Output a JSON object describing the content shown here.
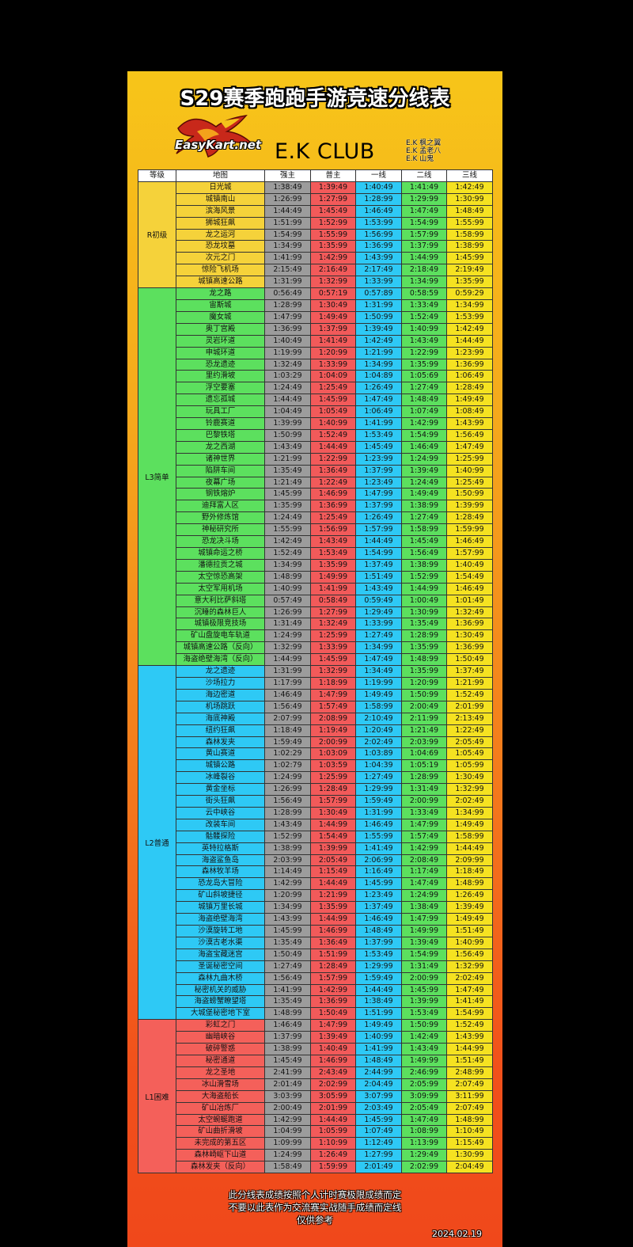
{
  "title": "S29赛季跑跑手游竞速分线表",
  "logo_text": "EasyKart.net",
  "club_name": "E.K CLUB",
  "members": [
    "E.K 枫之翼",
    "E.K 孟老八",
    "E.K 山鬼"
  ],
  "headers": [
    "等级",
    "地图",
    "强主",
    "普主",
    "一线",
    "二线",
    "三线"
  ],
  "colors": {
    "R": "#f5d23a",
    "L3": "#5ce05e",
    "L2": "#2ec9f5",
    "L1": "#f4605a",
    "col_strong": "#9c9c9c",
    "col_normal": "#f25a5a",
    "col_l1": "#2ec9f5",
    "col_l2": "#5ce05e",
    "col_l3": "#f5e221"
  },
  "groups": [
    {
      "level": "R初级",
      "key": "R",
      "rows": [
        [
          "日光城",
          "1:38:49",
          "1:39:49",
          "1:40:49",
          "1:41:49",
          "1:42:49"
        ],
        [
          "城镇南山",
          "1:26:99",
          "1:27:99",
          "1:28:99",
          "1:29:99",
          "1:30:99"
        ],
        [
          "滨海风景",
          "1:44:49",
          "1:45:49",
          "1:46:49",
          "1:47:49",
          "1:48:49"
        ],
        [
          "狮城狂飙",
          "1:51:99",
          "1:52:99",
          "1:53:99",
          "1:54:99",
          "1:55:99"
        ],
        [
          "龙之运河",
          "1:54:99",
          "1:55:99",
          "1:56:99",
          "1:57:99",
          "1:58:99"
        ],
        [
          "恐龙坟墓",
          "1:34:99",
          "1:35:99",
          "1:36:99",
          "1:37:99",
          "1:38:99"
        ],
        [
          "次元之门",
          "1:41:99",
          "1:42:99",
          "1:43:99",
          "1:44:99",
          "1:45:99"
        ],
        [
          "惊险飞机场",
          "2:15:49",
          "2:16:49",
          "2:17:49",
          "2:18:49",
          "2:19:49"
        ],
        [
          "城镇高速公路",
          "1:31:99",
          "1:32:99",
          "1:33:99",
          "1:34:99",
          "1:35:99"
        ]
      ]
    },
    {
      "level": "L3简单",
      "key": "L3",
      "rows": [
        [
          "龙之路",
          "0:56:49",
          "0:57:19",
          "0:57:89",
          "0:58:59",
          "0:59:29"
        ],
        [
          "宙斯城",
          "1:28:99",
          "1:30:49",
          "1:31:99",
          "1:33:49",
          "1:34:99"
        ],
        [
          "魔女城",
          "1:47:99",
          "1:49:49",
          "1:50:99",
          "1:52:49",
          "1:53:99"
        ],
        [
          "奥丁宫殿",
          "1:36:99",
          "1:37:99",
          "1:39:49",
          "1:40:99",
          "1:42:49"
        ],
        [
          "灵岩环道",
          "1:40:49",
          "1:41:49",
          "1:42:49",
          "1:43:49",
          "1:44:49"
        ],
        [
          "申城环道",
          "1:19:99",
          "1:20:99",
          "1:21:99",
          "1:22:99",
          "1:23:99"
        ],
        [
          "恐龙遗迹",
          "1:32:49",
          "1:33:99",
          "1:34:99",
          "1:35:99",
          "1:36:99"
        ],
        [
          "里约滑坡",
          "1:03:29",
          "1:04:09",
          "1:04:89",
          "1:05:69",
          "1:06:49"
        ],
        [
          "浮空要塞",
          "1:24:49",
          "1:25:49",
          "1:26:49",
          "1:27:49",
          "1:28:49"
        ],
        [
          "遗忘孤城",
          "1:44:49",
          "1:45:99",
          "1:47:49",
          "1:48:49",
          "1:49:49"
        ],
        [
          "玩具工厂",
          "1:04:49",
          "1:05:49",
          "1:06:49",
          "1:07:49",
          "1:08:49"
        ],
        [
          "铃鹿赛道",
          "1:39:99",
          "1:40:99",
          "1:41:99",
          "1:42:99",
          "1:43:99"
        ],
        [
          "巴黎铁塔",
          "1:50:99",
          "1:52:49",
          "1:53:49",
          "1:54:99",
          "1:56:49"
        ],
        [
          "龙之西湖",
          "1:43:49",
          "1:44:49",
          "1:45:49",
          "1:46:49",
          "1:47:49"
        ],
        [
          "诸神世界",
          "1:21:99",
          "1:22:99",
          "1:23:99",
          "1:24:99",
          "1:25:99"
        ],
        [
          "陷阱车间",
          "1:35:49",
          "1:36:49",
          "1:37:99",
          "1:39:49",
          "1:40:99"
        ],
        [
          "夜幕广场",
          "1:21:49",
          "1:22:49",
          "1:23:49",
          "1:24:49",
          "1:25:49"
        ],
        [
          "钢铁熔炉",
          "1:45:99",
          "1:46:99",
          "1:47:99",
          "1:49:49",
          "1:50:99"
        ],
        [
          "迪拜富人区",
          "1:35:99",
          "1:36:99",
          "1:37:99",
          "1:38:99",
          "1:39:99"
        ],
        [
          "野外修炼馆",
          "1:24:49",
          "1:25:49",
          "1:26:49",
          "1:27:49",
          "1:28:49"
        ],
        [
          "神秘研究所",
          "1:55:99",
          "1:56:99",
          "1:57:99",
          "1:58:99",
          "1:59:99"
        ],
        [
          "恐龙决斗场",
          "1:42:49",
          "1:43:49",
          "1:44:49",
          "1:45:49",
          "1:46:49"
        ],
        [
          "城镇命运之桥",
          "1:52:49",
          "1:53:49",
          "1:54:99",
          "1:56:49",
          "1:57:99"
        ],
        [
          "潘德拉贡之城",
          "1:34:99",
          "1:35:99",
          "1:37:49",
          "1:38:99",
          "1:40:49"
        ],
        [
          "太空惊恐高架",
          "1:48:99",
          "1:49:99",
          "1:51:49",
          "1:52:99",
          "1:54:49"
        ],
        [
          "太空军用机场",
          "1:40:99",
          "1:41:99",
          "1:43:49",
          "1:44:99",
          "1:46:49"
        ],
        [
          "意大利比萨斜塔",
          "0:57:49",
          "0:58:49",
          "0:59:49",
          "1:00:49",
          "1:01:49"
        ],
        [
          "沉睡的森林巨人",
          "1:26:99",
          "1:27:99",
          "1:29:49",
          "1:30:99",
          "1:32:49"
        ],
        [
          "城镇极限竞技场",
          "1:31:49",
          "1:32:49",
          "1:33:99",
          "1:35:49",
          "1:36:99"
        ],
        [
          "矿山盘旋电车轨道",
          "1:24:99",
          "1:25:99",
          "1:27:49",
          "1:28:99",
          "1:30:49"
        ],
        [
          "城镇高速公路（反向）",
          "1:32:99",
          "1:33:99",
          "1:34:99",
          "1:35:99",
          "1:36:99"
        ],
        [
          "海盗绝壁海湾（反向）",
          "1:44:99",
          "1:45:99",
          "1:47:49",
          "1:48:99",
          "1:50:49"
        ]
      ]
    },
    {
      "level": "L2普通",
      "key": "L2",
      "rows": [
        [
          "龙之遗迹",
          "1:31:99",
          "1:32:99",
          "1:34:49",
          "1:35:99",
          "1:37:49"
        ],
        [
          "沙场拉力",
          "1:17:99",
          "1:18:99",
          "1:19:99",
          "1:20:99",
          "1:21:99"
        ],
        [
          "海边密道",
          "1:46:49",
          "1:47:99",
          "1:49:49",
          "1:50:99",
          "1:52:49"
        ],
        [
          "机场跳跃",
          "1:56:49",
          "1:57:49",
          "1:58:99",
          "2:00:49",
          "2:01:99"
        ],
        [
          "海底神殿",
          "2:07:99",
          "2:08:99",
          "2:10:49",
          "2:11:99",
          "2:13:49"
        ],
        [
          "纽约狂飙",
          "1:18:49",
          "1:19:49",
          "1:20:49",
          "1:21:49",
          "1:22:49"
        ],
        [
          "森林发夹",
          "1:59:49",
          "2:00:99",
          "2:02:49",
          "2:03:99",
          "2:05:49"
        ],
        [
          "黄山赛道",
          "1:02:29",
          "1:03:09",
          "1:03:89",
          "1:04:69",
          "1:05:49"
        ],
        [
          "城镇公路",
          "1:02:79",
          "1:03:59",
          "1:04:39",
          "1:05:19",
          "1:05:99"
        ],
        [
          "冰峰裂谷",
          "1:24:99",
          "1:25:99",
          "1:27:49",
          "1:28:99",
          "1:30:49"
        ],
        [
          "黄金坐标",
          "1:26:99",
          "1:28:49",
          "1:29:99",
          "1:31:49",
          "1:32:99"
        ],
        [
          "街头狂飙",
          "1:56:49",
          "1:57:99",
          "1:59:49",
          "2:00:99",
          "2:02:49"
        ],
        [
          "云中峡谷",
          "1:28:99",
          "1:30:49",
          "1:31:99",
          "1:33:49",
          "1:34:99"
        ],
        [
          "改装车间",
          "1:43:49",
          "1:44:99",
          "1:46:49",
          "1:47:99",
          "1:49:49"
        ],
        [
          "骷髅探险",
          "1:52:99",
          "1:54:49",
          "1:55:99",
          "1:57:49",
          "1:58:99"
        ],
        [
          "英特拉格斯",
          "1:38:99",
          "1:39:99",
          "1:41:49",
          "1:42:99",
          "1:44:49"
        ],
        [
          "海盗鲨鱼岛",
          "2:03:99",
          "2:05:49",
          "2:06:99",
          "2:08:49",
          "2:09:99"
        ],
        [
          "森林牧羊场",
          "1:14:49",
          "1:15:49",
          "1:16:49",
          "1:17:49",
          "1:18:49"
        ],
        [
          "恐龙岛大冒险",
          "1:42:99",
          "1:44:49",
          "1:45:99",
          "1:47:49",
          "1:48:99"
        ],
        [
          "矿山斜坡捷径",
          "1:20:99",
          "1:21:99",
          "1:23:49",
          "1:24:99",
          "1:26:49"
        ],
        [
          "城镇万里长城",
          "1:34:99",
          "1:35:99",
          "1:37:49",
          "1:38:49",
          "1:39:49"
        ],
        [
          "海盗绝壁海湾",
          "1:43:99",
          "1:44:99",
          "1:46:49",
          "1:47:99",
          "1:49:49"
        ],
        [
          "沙漠旋转工地",
          "1:45:99",
          "1:46:99",
          "1:48:49",
          "1:49:99",
          "1:51:49"
        ],
        [
          "沙漠古老水渠",
          "1:35:49",
          "1:36:49",
          "1:37:99",
          "1:39:49",
          "1:40:99"
        ],
        [
          "海盗宝藏迷宫",
          "1:50:49",
          "1:51:99",
          "1:53:49",
          "1:54:99",
          "1:56:49"
        ],
        [
          "圣诞秘密空间",
          "1:27:49",
          "1:28:49",
          "1:29:99",
          "1:31:49",
          "1:32:99"
        ],
        [
          "森林九曲木桥",
          "1:56:49",
          "1:57:99",
          "1:59:49",
          "2:00:99",
          "2:02:49"
        ],
        [
          "秘密机关的威胁",
          "1:41:99",
          "1:42:99",
          "1:44:49",
          "1:45:99",
          "1:47:49"
        ],
        [
          "海盗螃蟹瞭望塔",
          "1:35:49",
          "1:36:99",
          "1:38:49",
          "1:39:99",
          "1:41:49"
        ],
        [
          "大城堡秘密地下室",
          "1:48:99",
          "1:50:49",
          "1:51:99",
          "1:53:49",
          "1:54:99"
        ]
      ]
    },
    {
      "level": "L1困难",
      "key": "L1",
      "rows": [
        [
          "彩虹之门",
          "1:46:49",
          "1:47:99",
          "1:49:49",
          "1:50:99",
          "1:52:49"
        ],
        [
          "幽暗峡谷",
          "1:37:99",
          "1:39:49",
          "1:40:99",
          "1:42:49",
          "1:43:99"
        ],
        [
          "破碎警惑",
          "1:38:99",
          "1:40:49",
          "1:41:99",
          "1:43:49",
          "1:44:99"
        ],
        [
          "秘密通道",
          "1:45:49",
          "1:46:99",
          "1:48:49",
          "1:49:99",
          "1:51:49"
        ],
        [
          "龙之圣地",
          "2:41:99",
          "2:43:49",
          "2:44:99",
          "2:46:99",
          "2:48:99"
        ],
        [
          "冰山滑雪场",
          "2:01:49",
          "2:02:99",
          "2:04:49",
          "2:05:99",
          "2:07:49"
        ],
        [
          "大海盗船长",
          "3:03:99",
          "3:05:99",
          "3:07:99",
          "3:09:99",
          "3:11:99"
        ],
        [
          "矿山冶炼厂",
          "2:00:49",
          "2:01:99",
          "2:03:49",
          "2:05:49",
          "2:07:49"
        ],
        [
          "太空蜿蜒跑道",
          "1:42:99",
          "1:44:49",
          "1:45:99",
          "1:47:49",
          "1:48:99"
        ],
        [
          "矿山曲折滑坡",
          "1:04:99",
          "1:05:99",
          "1:07:49",
          "1:08:99",
          "1:10:49"
        ],
        [
          "未完成的第五区",
          "1:09:99",
          "1:10:99",
          "1:12:49",
          "1:13:99",
          "1:15:49"
        ],
        [
          "森林崎岖下山道",
          "1:24:99",
          "1:26:49",
          "1:27:99",
          "1:29:49",
          "1:30:99"
        ],
        [
          "森林发夹（反向）",
          "1:58:49",
          "1:59:99",
          "2:01:49",
          "2:02:99",
          "2:04:49"
        ]
      ]
    }
  ],
  "footer_lines": [
    "此分线表成绩按照个人计时赛极限成绩而定",
    "不要以此表作为交流赛实战随手成绩而定线",
    "仅供参考"
  ],
  "date": "2024.02.19"
}
